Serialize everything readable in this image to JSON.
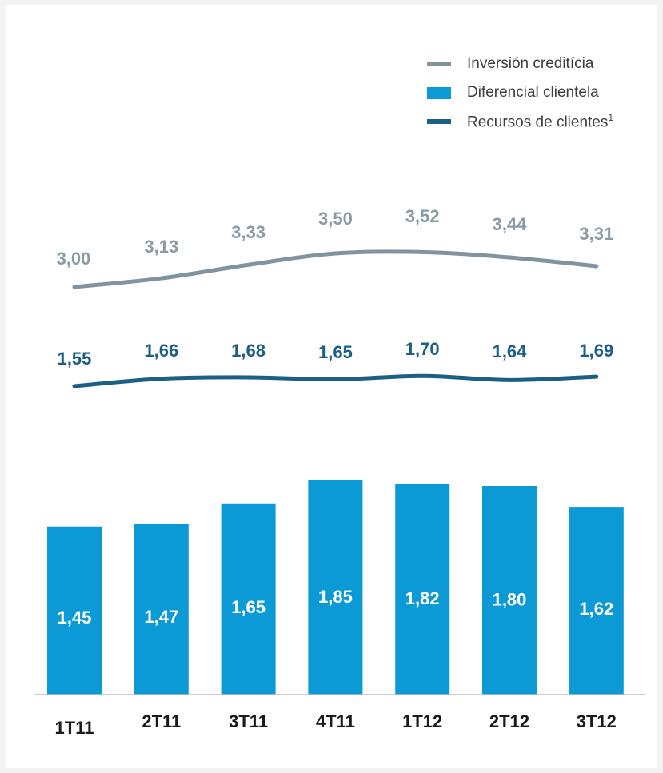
{
  "chart_data": {
    "type": "bar",
    "categories": [
      "1T11",
      "2T11",
      "3T11",
      "4T11",
      "1T12",
      "2T12",
      "3T12"
    ],
    "series": [
      {
        "name": "Inversión creditícia",
        "type": "line",
        "values": [
          3.0,
          3.13,
          3.33,
          3.5,
          3.52,
          3.44,
          3.31
        ],
        "labels": [
          "3,00",
          "3,13",
          "3,33",
          "3,50",
          "3,52",
          "3,44",
          "3,31"
        ]
      },
      {
        "name": "Diferencial clientela",
        "type": "bar",
        "values": [
          1.45,
          1.47,
          1.65,
          1.85,
          1.82,
          1.8,
          1.62
        ],
        "labels": [
          "1,45",
          "1,47",
          "1,65",
          "1,85",
          "1,82",
          "1,80",
          "1,62"
        ]
      },
      {
        "name": "Recursos de clientes",
        "name_superscript": "1",
        "type": "line",
        "values": [
          1.55,
          1.66,
          1.68,
          1.65,
          1.7,
          1.64,
          1.69
        ],
        "labels": [
          "1,55",
          "1,66",
          "1,68",
          "1,65",
          "1,70",
          "1,64",
          "1,69"
        ]
      }
    ],
    "legend_position": "top-right",
    "grid": false
  },
  "colors": {
    "inversion_line": "#7f93a1",
    "inversion_label": "#8a9ba8",
    "bars": "#0b9ad6",
    "recursos_line": "#1b5f84",
    "recursos_label": "#1b5f84",
    "bar_label": "#ffffff",
    "category_label": "#1a1a1a"
  }
}
